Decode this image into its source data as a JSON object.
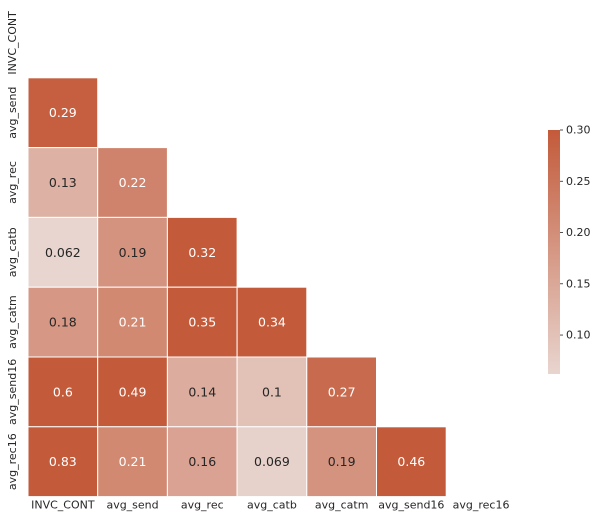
{
  "chart_data": {
    "type": "heatmap",
    "title": "",
    "xlabel": "",
    "ylabel": "",
    "mask": "upper triangle including diagonal",
    "x_labels": [
      "INVC_CONT",
      "avg_send",
      "avg_rec",
      "avg_catb",
      "avg_catm",
      "avg_send16",
      "avg_rec16"
    ],
    "y_labels": [
      "INVC_CONT",
      "avg_send",
      "avg_rec",
      "avg_catb",
      "avg_catm",
      "avg_send16",
      "avg_rec16"
    ],
    "cells": [
      {
        "row": "avg_send",
        "col": "INVC_CONT",
        "value": 0.29,
        "label": "0.29"
      },
      {
        "row": "avg_rec",
        "col": "INVC_CONT",
        "value": 0.13,
        "label": "0.13"
      },
      {
        "row": "avg_rec",
        "col": "avg_send",
        "value": 0.22,
        "label": "0.22"
      },
      {
        "row": "avg_catb",
        "col": "INVC_CONT",
        "value": 0.062,
        "label": "0.062"
      },
      {
        "row": "avg_catb",
        "col": "avg_send",
        "value": 0.19,
        "label": "0.19"
      },
      {
        "row": "avg_catb",
        "col": "avg_rec",
        "value": 0.32,
        "label": "0.32"
      },
      {
        "row": "avg_catm",
        "col": "INVC_CONT",
        "value": 0.18,
        "label": "0.18"
      },
      {
        "row": "avg_catm",
        "col": "avg_send",
        "value": 0.21,
        "label": "0.21"
      },
      {
        "row": "avg_catm",
        "col": "avg_rec",
        "value": 0.35,
        "label": "0.35"
      },
      {
        "row": "avg_catm",
        "col": "avg_catb",
        "value": 0.34,
        "label": "0.34"
      },
      {
        "row": "avg_send16",
        "col": "INVC_CONT",
        "value": 0.6,
        "label": "0.6"
      },
      {
        "row": "avg_send16",
        "col": "avg_send",
        "value": 0.49,
        "label": "0.49"
      },
      {
        "row": "avg_send16",
        "col": "avg_rec",
        "value": 0.14,
        "label": "0.14"
      },
      {
        "row": "avg_send16",
        "col": "avg_catb",
        "value": 0.1,
        "label": "0.1"
      },
      {
        "row": "avg_send16",
        "col": "avg_catm",
        "value": 0.27,
        "label": "0.27"
      },
      {
        "row": "avg_rec16",
        "col": "INVC_CONT",
        "value": 0.83,
        "label": "0.83"
      },
      {
        "row": "avg_rec16",
        "col": "avg_send",
        "value": 0.21,
        "label": "0.21"
      },
      {
        "row": "avg_rec16",
        "col": "avg_rec",
        "value": 0.16,
        "label": "0.16"
      },
      {
        "row": "avg_rec16",
        "col": "avg_catb",
        "value": 0.069,
        "label": "0.069"
      },
      {
        "row": "avg_rec16",
        "col": "avg_catm",
        "value": 0.19,
        "label": "0.19"
      },
      {
        "row": "avg_rec16",
        "col": "avg_send16",
        "value": 0.46,
        "label": "0.46"
      }
    ],
    "colorbar": {
      "range": [
        0.062,
        0.3
      ],
      "ticks": [
        0.1,
        0.15,
        0.2,
        0.25,
        0.3
      ],
      "tick_labels": [
        "0.10",
        "0.15",
        "0.20",
        "0.25",
        "0.30"
      ],
      "placement": "right"
    },
    "colormap": {
      "low": "#e8d5cf",
      "high": "#c35a3a"
    },
    "grid": false,
    "legend": "none"
  }
}
